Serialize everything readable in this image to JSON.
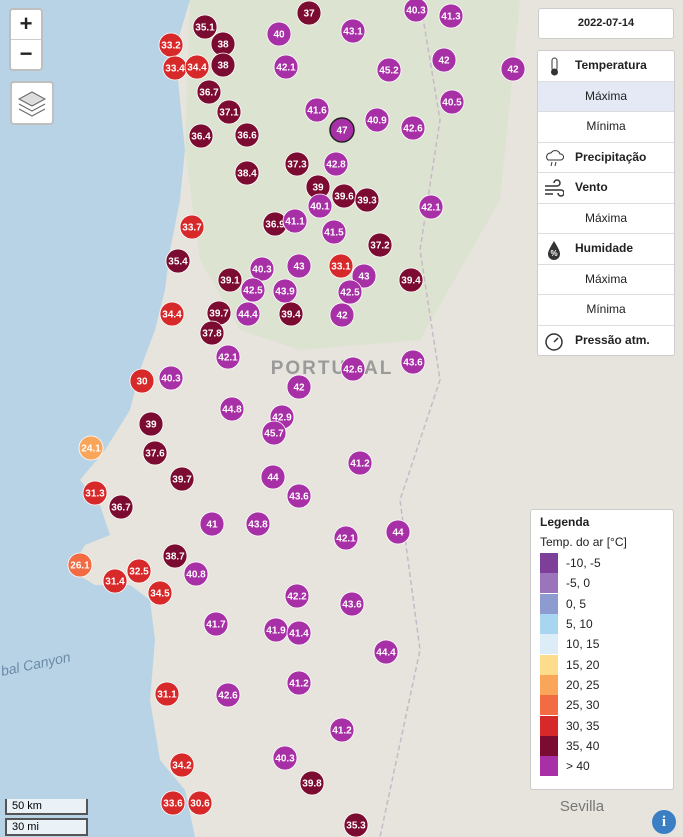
{
  "controls": {
    "zoom_in": "+",
    "zoom_out": "−"
  },
  "date": "2022-07-14",
  "menu": [
    {
      "title": "Temperatura",
      "items": [
        "Máxima",
        "Mínima"
      ]
    },
    {
      "title": "Precipitação",
      "items": []
    },
    {
      "title": "Vento",
      "items": [
        "Máxima"
      ]
    },
    {
      "title": "Humidade",
      "items": [
        "Máxima",
        "Mínima"
      ]
    },
    {
      "title": "Pressão atm.",
      "items": []
    }
  ],
  "legend": {
    "title": "Legenda",
    "subtitle": "Temp. do ar [°C]",
    "items": [
      {
        "label": "-10, -5",
        "color": "#7e3f98"
      },
      {
        "label": "-5, 0",
        "color": "#9b74bb"
      },
      {
        "label": "0, 5",
        "color": "#8d9bd0"
      },
      {
        "label": "5, 10",
        "color": "#a8d5ef"
      },
      {
        "label": "10, 15",
        "color": "#dcedf8"
      },
      {
        "label": "15, 20",
        "color": "#fddc8c"
      },
      {
        "label": "20, 25",
        "color": "#f9a65a"
      },
      {
        "label": "25, 30",
        "color": "#f26b43"
      },
      {
        "label": "30, 35",
        "color": "#d7292a"
      },
      {
        "label": "35, 40",
        "color": "#7b0b31"
      },
      {
        "label": "> 40",
        "color": "#a830a6"
      }
    ]
  },
  "scale": {
    "km": "50 km",
    "mi": "30 mi"
  },
  "map_labels": [
    "PORTUGAL",
    "Sevilla",
    "bal Canyon"
  ],
  "markers": [
    {
      "value": 37,
      "color": "#7b0b31"
    },
    {
      "value": 43.1,
      "color": "#a830a6"
    },
    {
      "value": 40.3,
      "color": "#a830a6"
    },
    {
      "value": 41.3,
      "color": "#a830a6"
    },
    {
      "value": 33.2,
      "color": "#d7292a"
    },
    {
      "value": 35.1,
      "color": "#7b0b31"
    },
    {
      "value": 38,
      "color": "#7b0b31"
    },
    {
      "value": 40,
      "color": "#a830a6"
    },
    {
      "value": 33.4,
      "color": "#d7292a"
    },
    {
      "value": 34.4,
      "color": "#d7292a"
    },
    {
      "value": 38,
      "color": "#7b0b31"
    },
    {
      "value": 42.1,
      "color": "#a830a6"
    },
    {
      "value": 45.2,
      "color": "#a830a6"
    },
    {
      "value": 42,
      "color": "#a830a6"
    },
    {
      "value": 42,
      "color": "#a830a6"
    },
    {
      "value": 36.7,
      "color": "#7b0b31"
    },
    {
      "value": 40.5,
      "color": "#a830a6"
    },
    {
      "value": 37.1,
      "color": "#7b0b31"
    },
    {
      "value": 41.6,
      "color": "#a830a6"
    },
    {
      "value": 47,
      "color": "#a830a6"
    },
    {
      "value": 40.9,
      "color": "#a830a6"
    },
    {
      "value": 42.6,
      "color": "#a830a6"
    },
    {
      "value": 36.4,
      "color": "#7b0b31"
    },
    {
      "value": 36.6,
      "color": "#7b0b31"
    },
    {
      "value": 37.3,
      "color": "#7b0b31"
    },
    {
      "value": 42.8,
      "color": "#a830a6"
    },
    {
      "value": 38.4,
      "color": "#7b0b31"
    },
    {
      "value": 39,
      "color": "#7b0b31"
    },
    {
      "value": 39.6,
      "color": "#7b0b31"
    },
    {
      "value": 39.3,
      "color": "#7b0b31"
    },
    {
      "value": 40.1,
      "color": "#a830a6"
    },
    {
      "value": 42.1,
      "color": "#a830a6"
    },
    {
      "value": 33.7,
      "color": "#d7292a"
    },
    {
      "value": 36.9,
      "color": "#7b0b31"
    },
    {
      "value": 41.1,
      "color": "#a830a6"
    },
    {
      "value": 41.5,
      "color": "#a830a6"
    },
    {
      "value": 37.2,
      "color": "#7b0b31"
    },
    {
      "value": 35.4,
      "color": "#7b0b31"
    },
    {
      "value": 40.3,
      "color": "#a830a6"
    },
    {
      "value": 43,
      "color": "#a830a6"
    },
    {
      "value": 33.1,
      "color": "#d7292a"
    },
    {
      "value": 43,
      "color": "#a830a6"
    },
    {
      "value": 39.4,
      "color": "#7b0b31"
    },
    {
      "value": 39.1,
      "color": "#7b0b31"
    },
    {
      "value": 42.5,
      "color": "#a830a6"
    },
    {
      "value": 42.5,
      "color": "#a830a6"
    },
    {
      "value": 43.9,
      "color": "#a830a6"
    },
    {
      "value": 39.7,
      "color": "#7b0b31"
    },
    {
      "value": 44.4,
      "color": "#a830a6"
    },
    {
      "value": 39.4,
      "color": "#7b0b31"
    },
    {
      "value": 42,
      "color": "#a830a6"
    },
    {
      "value": 34.4,
      "color": "#d7292a"
    },
    {
      "value": 37.8,
      "color": "#7b0b31"
    },
    {
      "value": 42.1,
      "color": "#a830a6"
    },
    {
      "value": 43.6,
      "color": "#a830a6"
    },
    {
      "value": 42.6,
      "color": "#a830a6"
    },
    {
      "value": 42,
      "color": "#a830a6"
    },
    {
      "value": 30,
      "color": "#d7292a"
    },
    {
      "value": 40.3,
      "color": "#a830a6"
    },
    {
      "value": 44.8,
      "color": "#a830a6"
    },
    {
      "value": 42.9,
      "color": "#a830a6"
    },
    {
      "value": 45.7,
      "color": "#a830a6"
    },
    {
      "value": 39,
      "color": "#7b0b31"
    },
    {
      "value": 24.1,
      "color": "#f9a65a"
    },
    {
      "value": 37.6,
      "color": "#7b0b31"
    },
    {
      "value": 41.2,
      "color": "#a830a6"
    },
    {
      "value": 44,
      "color": "#a830a6"
    },
    {
      "value": 39.7,
      "color": "#7b0b31"
    },
    {
      "value": 31.3,
      "color": "#d7292a"
    },
    {
      "value": 43.6,
      "color": "#a830a6"
    },
    {
      "value": 36.7,
      "color": "#7b0b31"
    },
    {
      "value": 41,
      "color": "#a830a6"
    },
    {
      "value": 43.8,
      "color": "#a830a6"
    },
    {
      "value": 44,
      "color": "#a830a6"
    },
    {
      "value": 42.1,
      "color": "#a830a6"
    },
    {
      "value": 38.7,
      "color": "#7b0b31"
    },
    {
      "value": 26.1,
      "color": "#f26b43"
    },
    {
      "value": 32.5,
      "color": "#d7292a"
    },
    {
      "value": 31.4,
      "color": "#d7292a"
    },
    {
      "value": 40.8,
      "color": "#a830a6"
    },
    {
      "value": 34.5,
      "color": "#d7292a"
    },
    {
      "value": 42.2,
      "color": "#a830a6"
    },
    {
      "value": 43.6,
      "color": "#a830a6"
    },
    {
      "value": 41.7,
      "color": "#a830a6"
    },
    {
      "value": 41.9,
      "color": "#a830a6"
    },
    {
      "value": 41.4,
      "color": "#a830a6"
    },
    {
      "value": 44.4,
      "color": "#a830a6"
    },
    {
      "value": 41.2,
      "color": "#a830a6"
    },
    {
      "value": 31.1,
      "color": "#d7292a"
    },
    {
      "value": 42.6,
      "color": "#a830a6"
    },
    {
      "value": 41.2,
      "color": "#a830a6"
    },
    {
      "value": 34.2,
      "color": "#d7292a"
    },
    {
      "value": 40.3,
      "color": "#a830a6"
    },
    {
      "value": 39.8,
      "color": "#7b0b31"
    },
    {
      "value": 33.6,
      "color": "#d7292a"
    },
    {
      "value": 30.6,
      "color": "#d7292a"
    },
    {
      "value": 35.3,
      "color": "#7b0b31"
    }
  ]
}
